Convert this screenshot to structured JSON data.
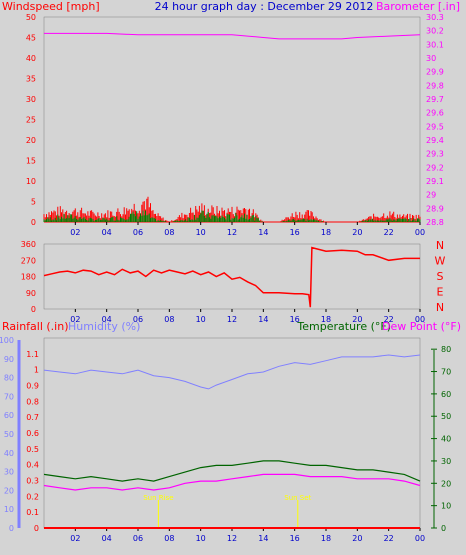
{
  "page": {
    "title": "24 hour graph day : December 29 2012"
  },
  "colors": {
    "background": "#d4d4d4",
    "wind": "#ff0000",
    "gust": "#ff0000",
    "wind_avg": "#008000",
    "barometer": "#ff00ff",
    "direction": "#ff0000",
    "rain": "#ff0000",
    "humidity": "#8080ff",
    "temperature": "#006400",
    "dewpoint": "#ff00ff",
    "tick_blue": "#0000cc",
    "sun": "#ffff00"
  },
  "chart_data": [
    {
      "type": "line",
      "name": "wind-barometer",
      "left_label": "Windspeed [mph]",
      "right_label": "Barometer [.in]",
      "x_ticks": [
        "02",
        "04",
        "06",
        "08",
        "10",
        "12",
        "14",
        "16",
        "18",
        "20",
        "22",
        "00"
      ],
      "x_range": [
        0,
        24
      ],
      "y_left_ticks": [
        "0",
        "5",
        "10",
        "15",
        "20",
        "25",
        "30",
        "35",
        "40",
        "45",
        "50"
      ],
      "ylim_left": [
        0,
        50
      ],
      "y_right_ticks": [
        "28.8",
        "28.9",
        "29",
        "29.1",
        "29.2",
        "29.3",
        "29.4",
        "29.5",
        "29.6",
        "29.7",
        "29.8",
        "29.9",
        "30",
        "30.1",
        "30.2",
        "30.3"
      ],
      "ylim_right": [
        28.8,
        30.3
      ],
      "barometer": {
        "x": [
          0,
          2,
          4,
          6,
          8,
          10,
          12,
          13,
          14,
          15,
          16,
          17,
          18,
          19,
          20,
          22,
          24
        ],
        "y": [
          30.18,
          30.18,
          30.18,
          30.17,
          30.17,
          30.17,
          30.17,
          30.16,
          30.15,
          30.14,
          30.14,
          30.14,
          30.14,
          30.14,
          30.15,
          30.16,
          30.17
        ]
      },
      "wind_envelope": {
        "x": [
          0,
          1,
          2,
          3,
          4,
          5,
          6,
          6.5,
          7,
          8,
          9,
          10,
          11,
          12,
          13,
          14,
          15,
          16,
          17,
          18,
          19,
          20,
          21,
          22,
          23,
          24
        ],
        "gust_max": [
          3,
          4,
          4,
          3,
          3,
          4,
          6,
          8,
          3,
          0,
          3,
          5,
          4,
          4,
          5,
          0,
          0,
          3,
          3,
          0,
          0,
          0,
          2,
          3,
          2,
          2
        ],
        "avg_max": [
          1,
          2,
          2,
          1,
          1,
          2,
          3,
          3,
          1,
          0,
          1,
          3,
          2,
          2,
          3,
          0,
          0,
          1,
          1,
          0,
          0,
          0,
          1,
          1,
          1,
          1
        ]
      }
    },
    {
      "type": "line",
      "name": "wind-direction",
      "y_labels": [
        "360",
        "270",
        "180",
        "90",
        "0"
      ],
      "ylim": [
        0,
        360
      ],
      "direction_letters": [
        "N",
        "W",
        "S",
        "E",
        "N"
      ],
      "x_ticks": [
        "02",
        "04",
        "06",
        "08",
        "10",
        "12",
        "14",
        "16",
        "18",
        "20",
        "22",
        "00"
      ],
      "direction": {
        "x": [
          0,
          0.5,
          1,
          1.5,
          2,
          2.5,
          3,
          3.5,
          4,
          4.5,
          5,
          5.5,
          6,
          6.5,
          7,
          7.5,
          8,
          8.5,
          9,
          9.5,
          10,
          10.5,
          11,
          11.5,
          12,
          12.5,
          13,
          13.5,
          14,
          15,
          16,
          16.5,
          16.9,
          17,
          17.1,
          18,
          19,
          20,
          20.5,
          21,
          22,
          23,
          24
        ],
        "y": [
          185,
          195,
          205,
          210,
          200,
          215,
          210,
          190,
          205,
          190,
          220,
          200,
          210,
          180,
          215,
          200,
          215,
          205,
          195,
          210,
          190,
          205,
          180,
          200,
          165,
          175,
          150,
          130,
          90,
          90,
          85,
          85,
          80,
          10,
          340,
          320,
          325,
          320,
          300,
          300,
          270,
          280,
          280
        ]
      }
    },
    {
      "type": "line",
      "name": "rain-humidity-temperature",
      "rain_label": "Rainfall (.in)",
      "humidity_label": "Humidity (%)",
      "temperature_label": "Temperature (°F)",
      "dewpoint_label": "Dew Point (°F)",
      "x_ticks": [
        "02",
        "04",
        "06",
        "08",
        "10",
        "12",
        "14",
        "16",
        "18",
        "20",
        "22",
        "00"
      ],
      "humidity_ticks": [
        "0",
        "10",
        "20",
        "30",
        "40",
        "50",
        "60",
        "70",
        "80",
        "90",
        "100"
      ],
      "rain_ticks": [
        "0",
        "0.1",
        "0.2",
        "0.3",
        "0.4",
        "0.5",
        "0.6",
        "0.7",
        "0.8",
        "0.9",
        "1",
        "1.1"
      ],
      "ylim_rain": [
        0,
        1.2
      ],
      "temp_ticks": [
        "0",
        "10",
        "20",
        "30",
        "40",
        "50",
        "60",
        "70",
        "80"
      ],
      "ylim_temp": [
        0,
        85
      ],
      "sun_markers": [
        {
          "label": "Sun Rise",
          "x": 7.3
        },
        {
          "label": "Sun Set",
          "x": 16.2
        }
      ],
      "humidity": {
        "x": [
          0,
          1,
          2,
          3,
          4,
          5,
          6,
          7,
          8,
          9,
          10,
          10.5,
          11,
          12,
          13,
          14,
          15,
          16,
          17,
          18,
          19,
          20,
          21,
          22,
          23,
          24
        ],
        "y": [
          84,
          83,
          82,
          84,
          83,
          82,
          84,
          81,
          80,
          78,
          75,
          74,
          76,
          79,
          82,
          83,
          86,
          88,
          87,
          89,
          91,
          91,
          91,
          92,
          91,
          92
        ]
      },
      "temperature": {
        "x": [
          0,
          1,
          2,
          3,
          4,
          5,
          6,
          7,
          8,
          9,
          10,
          11,
          12,
          13,
          14,
          15,
          16,
          17,
          18,
          19,
          20,
          21,
          22,
          23,
          24
        ],
        "y": [
          24,
          23,
          22,
          23,
          22,
          21,
          22,
          21,
          23,
          25,
          27,
          28,
          28,
          29,
          30,
          30,
          29,
          28,
          28,
          27,
          26,
          26,
          25,
          24,
          21
        ]
      },
      "dewpoint": {
        "x": [
          0,
          1,
          2,
          3,
          4,
          5,
          6,
          7,
          8,
          9,
          10,
          11,
          12,
          13,
          14,
          15,
          16,
          17,
          18,
          19,
          20,
          21,
          22,
          23,
          24
        ],
        "y": [
          19,
          18,
          17,
          18,
          18,
          17,
          18,
          17,
          18,
          20,
          21,
          21,
          22,
          23,
          24,
          24,
          24,
          23,
          23,
          23,
          22,
          22,
          22,
          21,
          19
        ]
      },
      "rain": {
        "x": [
          0,
          24
        ],
        "y": [
          0,
          0
        ]
      }
    }
  ]
}
